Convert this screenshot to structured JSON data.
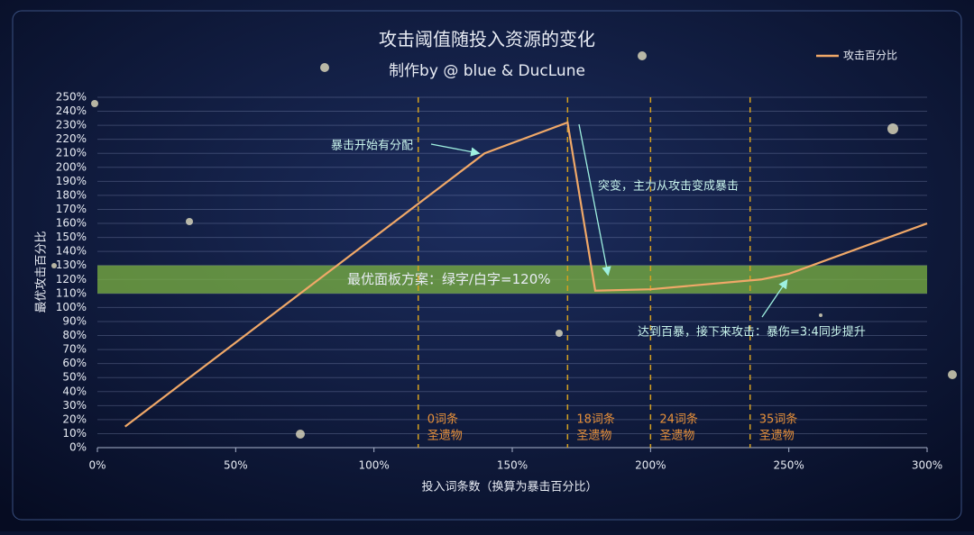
{
  "chart_data": {
    "type": "line",
    "title": "攻击阈值随投入资源的变化",
    "subtitle": "制作by @ blue & DucLune",
    "x_label": "投入词条数（换算为暴击百分比）",
    "y_label": "最优攻击百分比",
    "x": [
      10,
      130,
      140,
      170,
      180,
      200,
      240,
      250,
      300
    ],
    "series": [
      {
        "name": "攻击百分比",
        "color": "#f0a868",
        "values": [
          15,
          195,
          210,
          232,
          112,
          113,
          120,
          124,
          160
        ]
      }
    ],
    "xlim": [
      0,
      300
    ],
    "xticks": [
      {
        "value": 0,
        "label": "0%"
      },
      {
        "value": 50,
        "label": "50%"
      },
      {
        "value": 100,
        "label": "100%"
      },
      {
        "value": 150,
        "label": "150%"
      },
      {
        "value": 200,
        "label": "200%"
      },
      {
        "value": 250,
        "label": "250%"
      },
      {
        "value": 300,
        "label": "300%"
      }
    ],
    "ylim": [
      0,
      250
    ],
    "yticks": [
      {
        "value": 0,
        "label": "0%"
      },
      {
        "value": 10,
        "label": "10%"
      },
      {
        "value": 20,
        "label": "20%"
      },
      {
        "value": 30,
        "label": "30%"
      },
      {
        "value": 40,
        "label": "40%"
      },
      {
        "value": 50,
        "label": "50%"
      },
      {
        "value": 60,
        "label": "60%"
      },
      {
        "value": 70,
        "label": "70%"
      },
      {
        "value": 80,
        "label": "80%"
      },
      {
        "value": 90,
        "label": "90%"
      },
      {
        "value": 100,
        "label": "100%"
      },
      {
        "value": 110,
        "label": "110%"
      },
      {
        "value": 120,
        "label": "120%"
      },
      {
        "value": 130,
        "label": "130%"
      },
      {
        "value": 140,
        "label": "140%"
      },
      {
        "value": 150,
        "label": "150%"
      },
      {
        "value": 160,
        "label": "160%"
      },
      {
        "value": 170,
        "label": "170%"
      },
      {
        "value": 180,
        "label": "180%"
      },
      {
        "value": 190,
        "label": "190%"
      },
      {
        "value": 200,
        "label": "200%"
      },
      {
        "value": 210,
        "label": "210%"
      },
      {
        "value": 220,
        "label": "220%"
      },
      {
        "value": 230,
        "label": "230%"
      },
      {
        "value": 240,
        "label": "240%"
      },
      {
        "value": 250,
        "label": "250%"
      }
    ],
    "grid": true,
    "legend": "top-right",
    "band": {
      "range": [
        110,
        130
      ],
      "text": "最优面板方案：绿字/白字=120%",
      "color": "#7cb342"
    },
    "vlines": [
      {
        "x": 116,
        "label": [
          "0词条",
          "圣遗物"
        ]
      },
      {
        "x": 170,
        "label": [
          "18词条",
          "圣遗物"
        ]
      },
      {
        "x": 200,
        "label": [
          "24词条",
          "圣遗物"
        ]
      },
      {
        "x": 236,
        "label": [
          "35词条",
          "圣遗物"
        ]
      }
    ],
    "annotations": [
      {
        "text": "暴击开始有分配"
      },
      {
        "text": "突变，主力从攻击变成暴击"
      },
      {
        "text": "达到百暴，接下来攻击：暴伤=3:4同步提升"
      }
    ]
  }
}
